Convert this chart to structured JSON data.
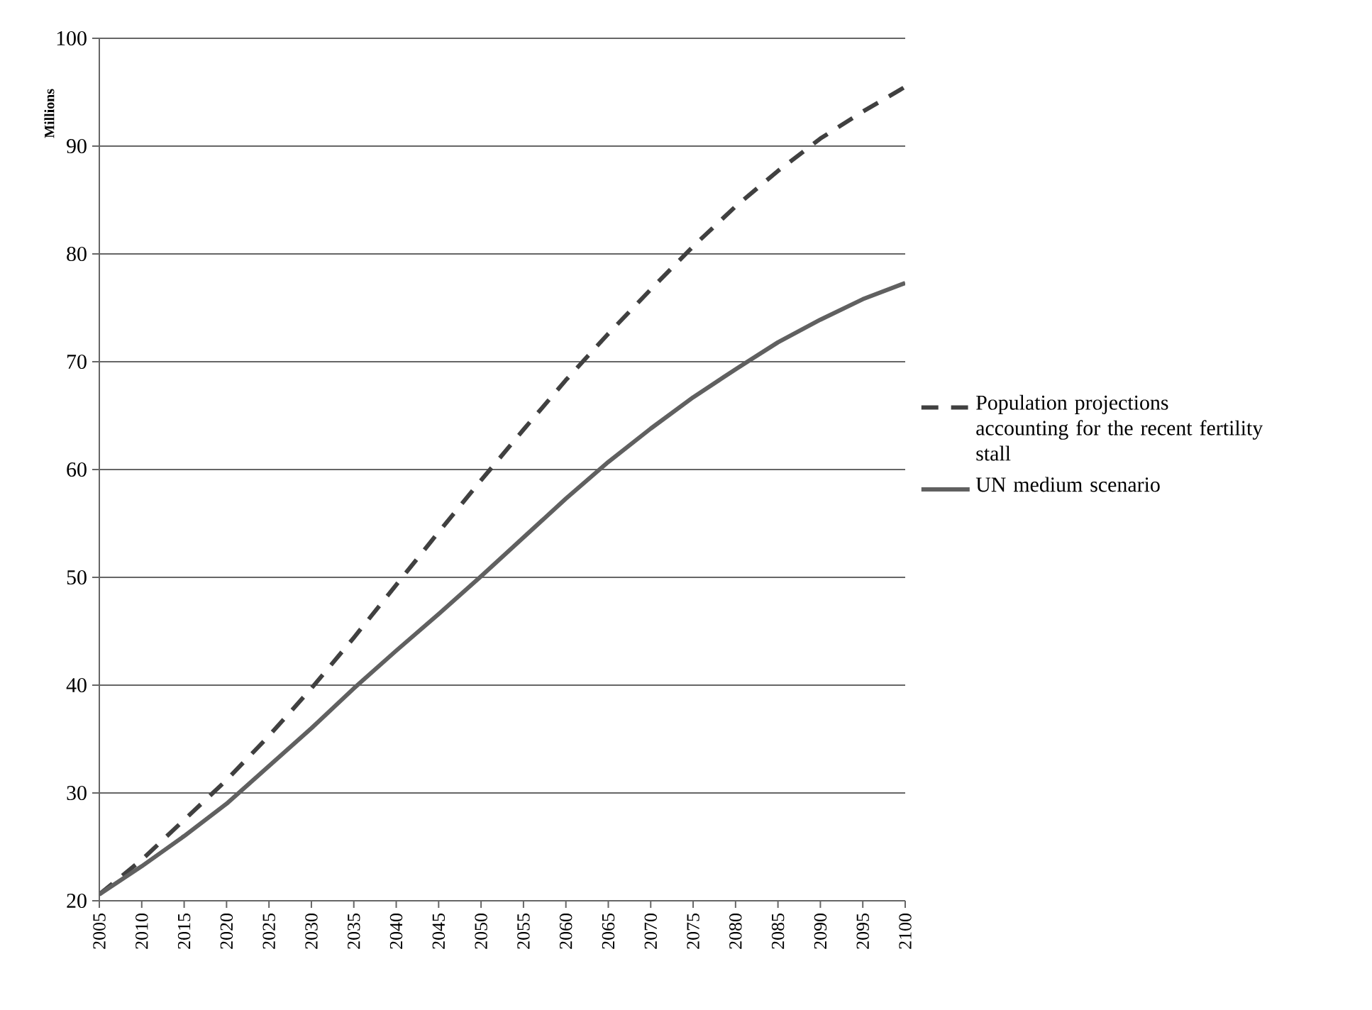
{
  "chart_data": {
    "type": "line",
    "ylabel": "Millions",
    "x": [
      2005,
      2010,
      2015,
      2020,
      2025,
      2030,
      2035,
      2040,
      2045,
      2050,
      2055,
      2060,
      2065,
      2070,
      2075,
      2080,
      2085,
      2090,
      2095,
      2100
    ],
    "series": [
      {
        "name": "Population projections accounting for the recent fertility stall",
        "color": "#404040",
        "line_style": "dashed",
        "values": [
          20.6,
          23.8,
          27.5,
          31.2,
          35.3,
          39.7,
          44.4,
          49.3,
          54.2,
          59.0,
          63.7,
          68.3,
          72.6,
          76.7,
          80.7,
          84.4,
          87.7,
          90.7,
          93.2,
          95.5
        ]
      },
      {
        "name": "UN medium scenario",
        "color": "#606060",
        "line_style": "solid",
        "values": [
          20.6,
          23.2,
          26.0,
          29.0,
          32.5,
          36.0,
          39.7,
          43.2,
          46.6,
          50.1,
          53.7,
          57.3,
          60.7,
          63.8,
          66.7,
          69.3,
          71.8,
          73.9,
          75.8,
          77.3
        ]
      }
    ],
    "xlim": [
      2005,
      2100
    ],
    "xticks": [
      2005,
      2010,
      2015,
      2020,
      2025,
      2030,
      2035,
      2040,
      2045,
      2050,
      2055,
      2060,
      2065,
      2070,
      2075,
      2080,
      2085,
      2090,
      2095,
      2100
    ],
    "ylim": [
      20,
      100
    ],
    "yticks": [
      20,
      30,
      40,
      50,
      60,
      70,
      80,
      90,
      100
    ],
    "grid": "y",
    "legend": "right",
    "marker": "none"
  }
}
